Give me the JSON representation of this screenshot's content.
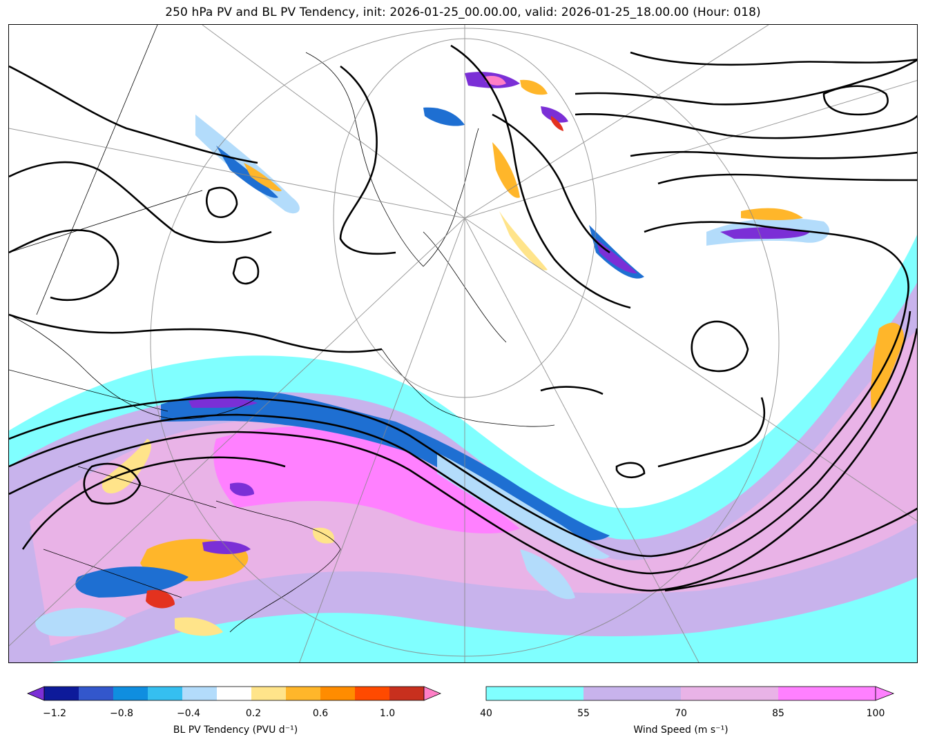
{
  "title": "250 hPa PV and BL PV Tendency, init: 2026-01-25_00.00.00, valid: 2026-01-25_18.00.00 (Hour: 018)",
  "colors": {
    "ws_40_55": "#80ffff",
    "ws_55_70": "#c8b3ec",
    "ws_70_85": "#e9b3e7",
    "ws_85_100": "#ff80ff",
    "pv_neg_strong": "#7b2fd6",
    "pv_neg": "#1e6fd2",
    "pv_neg_light": "#b3dcfb",
    "pv_pos_light": "#ffe48a",
    "pv_pos": "#ff9a10",
    "pv_pos_strong": "#e3321f",
    "pv_pos_max": "#ff7fc6"
  },
  "legend_pv": {
    "label": "BL PV Tendency (PVU d⁻¹)",
    "colors": [
      "#7b2fd6",
      "#0d1a9a",
      "#3357cc",
      "#0f8ee0",
      "#35bff0",
      "#b3dcfb",
      "#ffffff",
      "#ffe48a",
      "#ffb62a",
      "#ff8c00",
      "#ff4a00",
      "#c8301e",
      "#ff7fc6"
    ],
    "ticks": [
      "−1.2",
      "−0.8",
      "−0.4",
      "0.2",
      "0.6",
      "1.0"
    ]
  },
  "legend_ws": {
    "label": "Wind Speed (m s⁻¹)",
    "colors": [
      "#80ffff",
      "#c8b3ec",
      "#e9b3e7",
      "#ff80ff"
    ],
    "ticks": [
      "40",
      "55",
      "70",
      "85",
      "100"
    ]
  }
}
